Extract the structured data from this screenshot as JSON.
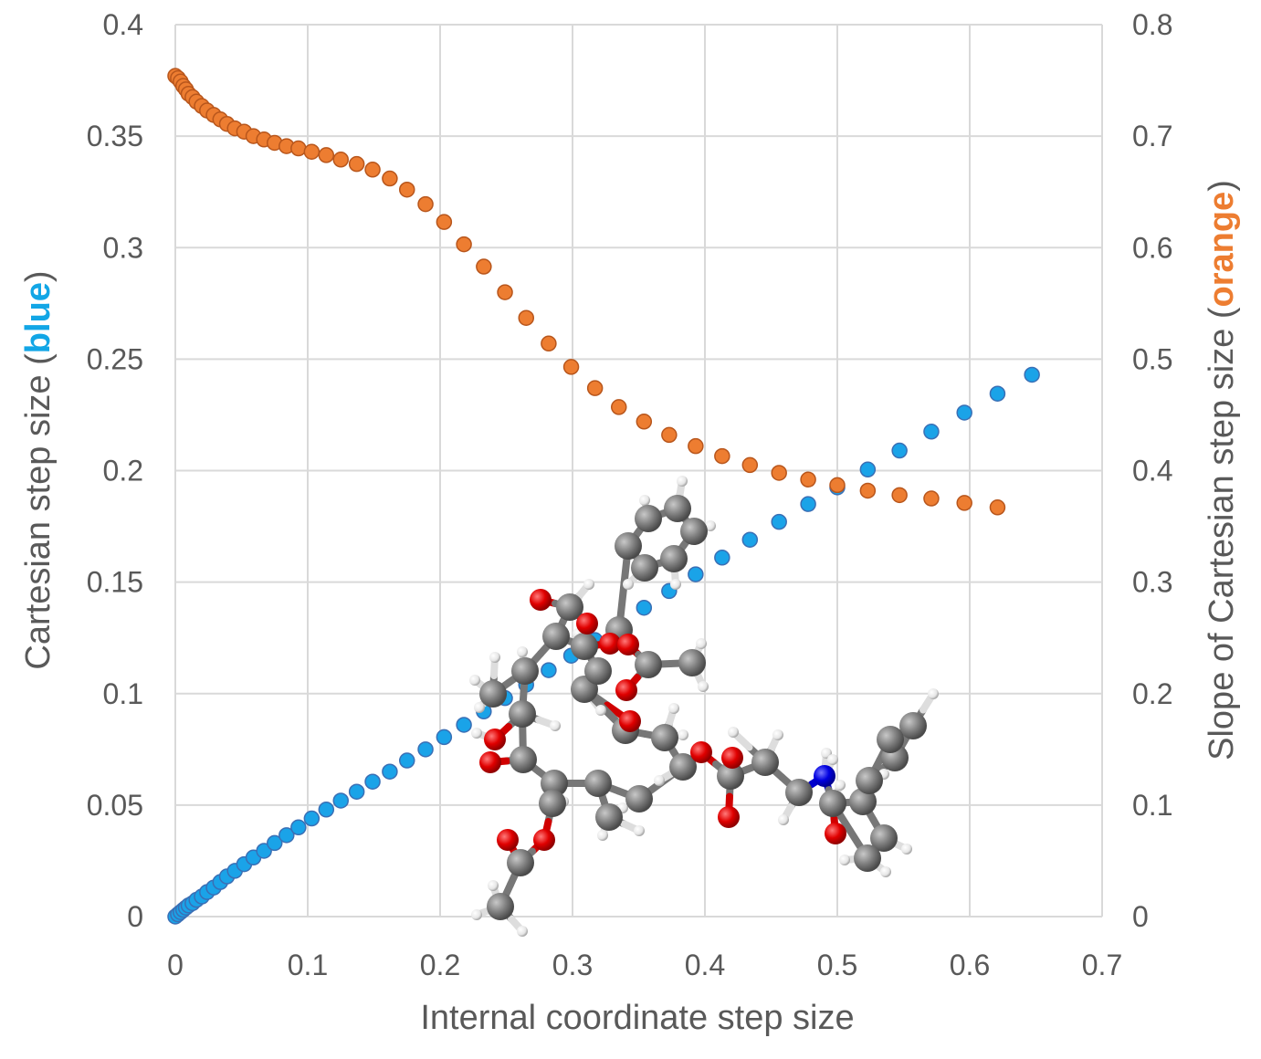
{
  "chart_data": {
    "type": "scatter",
    "xlabel": "Internal coordinate step size",
    "ylabel_left": {
      "prefix": "Cartesian step size (",
      "highlight": "blue",
      "suffix": ")"
    },
    "ylabel_right": {
      "prefix": "Slope of Cartesian step size (",
      "highlight": "orange",
      "suffix": ")"
    },
    "xlim": [
      0,
      0.7
    ],
    "ylim_left": [
      0,
      0.4
    ],
    "ylim_right": [
      0,
      0.8
    ],
    "x_ticks": [
      "0",
      "0.1",
      "0.2",
      "0.3",
      "0.4",
      "0.5",
      "0.6",
      "0.7"
    ],
    "y_ticks_left": [
      "0",
      "0.05",
      "0.1",
      "0.15",
      "0.2",
      "0.25",
      "0.3",
      "0.35",
      "0.4"
    ],
    "y_ticks_right": [
      "0",
      "0.1",
      "0.2",
      "0.3",
      "0.4",
      "0.5",
      "0.6",
      "0.7",
      "0.8"
    ],
    "grid": true,
    "colors": {
      "blue": "#1aa3e8",
      "orange": "#ed7d31",
      "blue_label": "#12a6e6",
      "orange_label": "#ed7d31",
      "grid": "#d9d9d9",
      "text": "#595959"
    },
    "series": [
      {
        "axis": "left",
        "color": "blue",
        "x": [
          0,
          0.002,
          0.004,
          0.006,
          0.008,
          0.01,
          0.013,
          0.016,
          0.02,
          0.024,
          0.029,
          0.034,
          0.039,
          0.045,
          0.052,
          0.059,
          0.067,
          0.075,
          0.084,
          0.093,
          0.103,
          0.114,
          0.125,
          0.137,
          0.149,
          0.162,
          0.175,
          0.189,
          0.203,
          0.218,
          0.233,
          0.249,
          0.265,
          0.282,
          0.299,
          0.317,
          0.335,
          0.354,
          0.373,
          0.393,
          0.413,
          0.434,
          0.456,
          0.478,
          0.5,
          0.523,
          0.547,
          0.571,
          0.596,
          0.621,
          0.647
        ],
        "y": [
          0.0,
          0.001,
          0.002,
          0.003,
          0.004,
          0.005,
          0.006,
          0.0075,
          0.009,
          0.011,
          0.013,
          0.0155,
          0.018,
          0.0205,
          0.0235,
          0.0265,
          0.0295,
          0.033,
          0.0365,
          0.04,
          0.044,
          0.048,
          0.052,
          0.056,
          0.0605,
          0.065,
          0.07,
          0.075,
          0.0805,
          0.086,
          0.092,
          0.098,
          0.104,
          0.1105,
          0.117,
          0.124,
          0.131,
          0.1385,
          0.146,
          0.1535,
          0.161,
          0.169,
          0.177,
          0.185,
          0.1925,
          0.2005,
          0.209,
          0.2175,
          0.226,
          0.2345,
          0.243
        ]
      },
      {
        "axis": "right",
        "color": "orange",
        "x": [
          0.0,
          0.002,
          0.004,
          0.006,
          0.008,
          0.01,
          0.013,
          0.016,
          0.02,
          0.024,
          0.029,
          0.034,
          0.039,
          0.045,
          0.052,
          0.059,
          0.067,
          0.075,
          0.084,
          0.093,
          0.103,
          0.114,
          0.125,
          0.137,
          0.149,
          0.162,
          0.175,
          0.189,
          0.203,
          0.218,
          0.233,
          0.249,
          0.265,
          0.282,
          0.299,
          0.317,
          0.335,
          0.354,
          0.373,
          0.393,
          0.413,
          0.434,
          0.456,
          0.478,
          0.5,
          0.523,
          0.547,
          0.571,
          0.596,
          0.621
        ],
        "y": [
          0.754,
          0.752,
          0.749,
          0.745,
          0.742,
          0.738,
          0.735,
          0.731,
          0.727,
          0.723,
          0.719,
          0.715,
          0.711,
          0.707,
          0.704,
          0.7,
          0.697,
          0.694,
          0.691,
          0.689,
          0.686,
          0.683,
          0.679,
          0.675,
          0.67,
          0.662,
          0.652,
          0.639,
          0.623,
          0.603,
          0.583,
          0.56,
          0.537,
          0.514,
          0.493,
          0.474,
          0.457,
          0.444,
          0.432,
          0.422,
          0.413,
          0.405,
          0.398,
          0.392,
          0.387,
          0.382,
          0.378,
          0.375,
          0.371,
          0.367
        ]
      }
    ]
  }
}
